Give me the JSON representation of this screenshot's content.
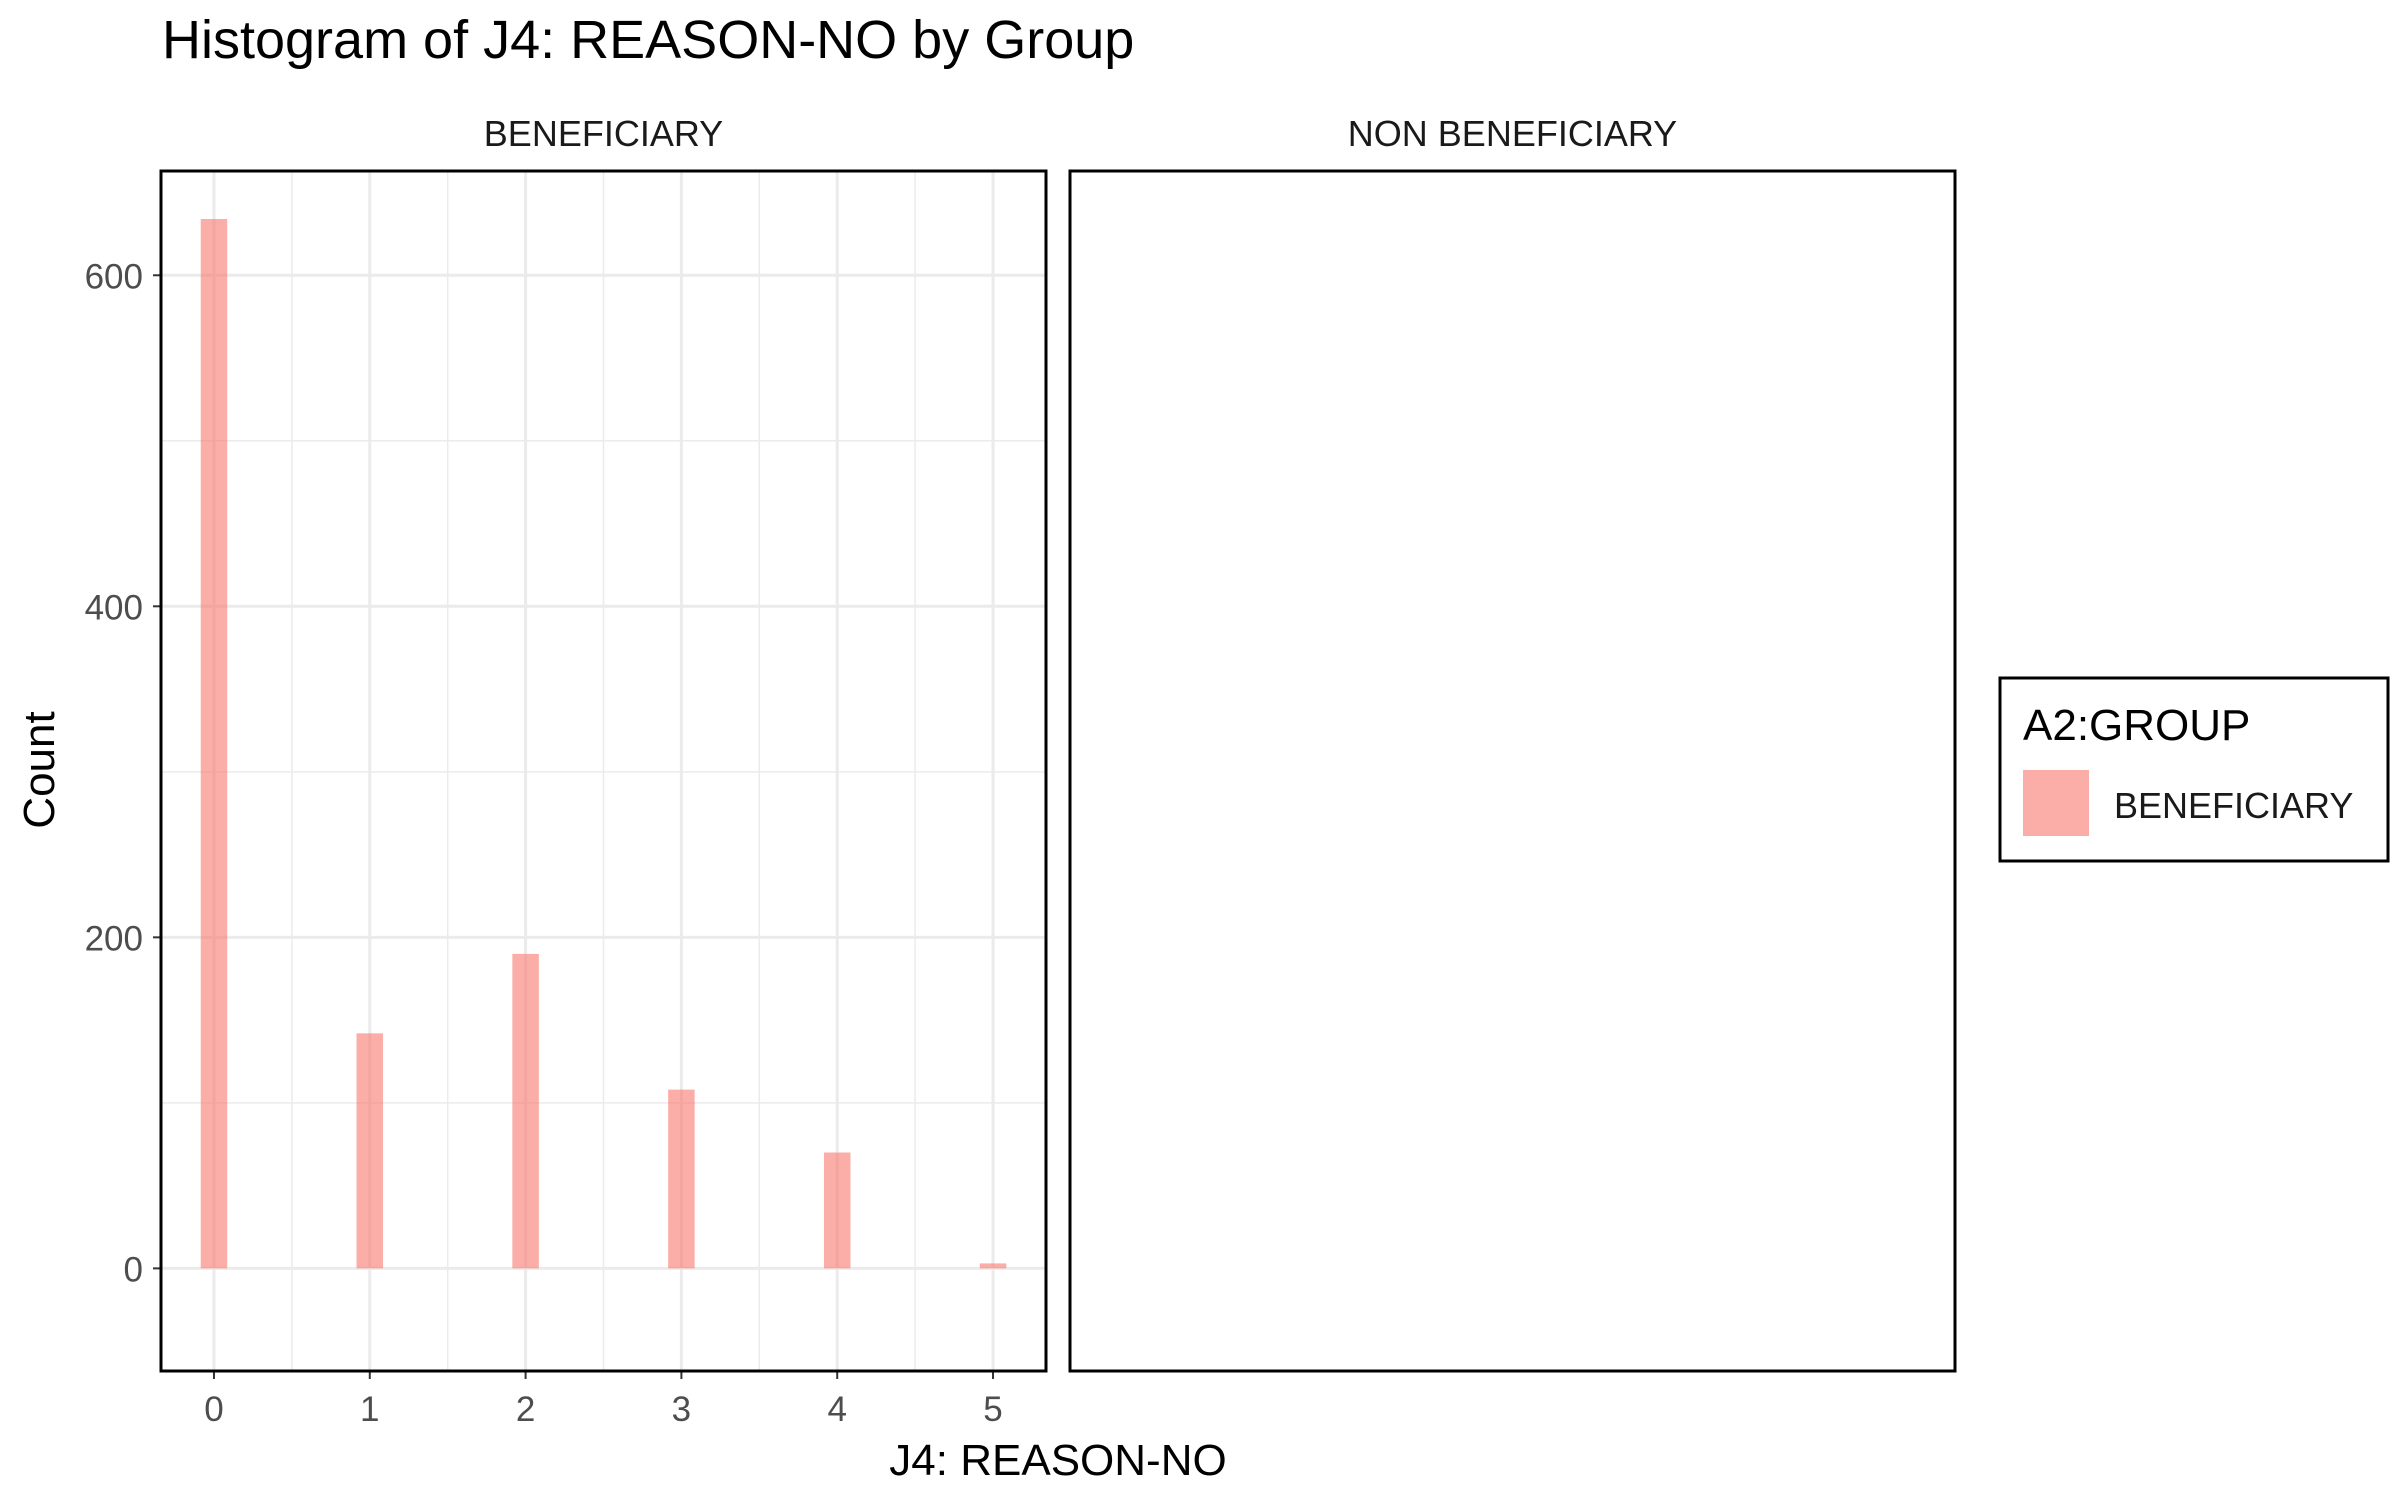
{
  "chart_data": {
    "type": "bar",
    "title": "Histogram of J4: REASON-NO by Group",
    "xlabel": "J4: REASON-NO",
    "ylabel": "Count",
    "facets": [
      "BENEFICIARY",
      "NON BENEFICIARY"
    ],
    "x_ticks": [
      "0",
      "1",
      "2",
      "3",
      "4",
      "5"
    ],
    "y_ticks": [
      "0",
      "200",
      "400",
      "600"
    ],
    "ylim": [
      -62,
      663
    ],
    "xlim": [
      -0.34,
      5.34
    ],
    "grid": true,
    "legend": {
      "title": "A2:GROUP",
      "position": "right",
      "entries": [
        {
          "label": "BENEFICIARY",
          "color": "#F8766D"
        }
      ]
    },
    "series": [
      {
        "name": "BENEFICIARY",
        "facet": "BENEFICIARY",
        "color": "#F8766D",
        "x": [
          0,
          1,
          2,
          3,
          4,
          5
        ],
        "values": [
          634,
          142,
          190,
          108,
          70,
          3
        ]
      }
    ]
  }
}
